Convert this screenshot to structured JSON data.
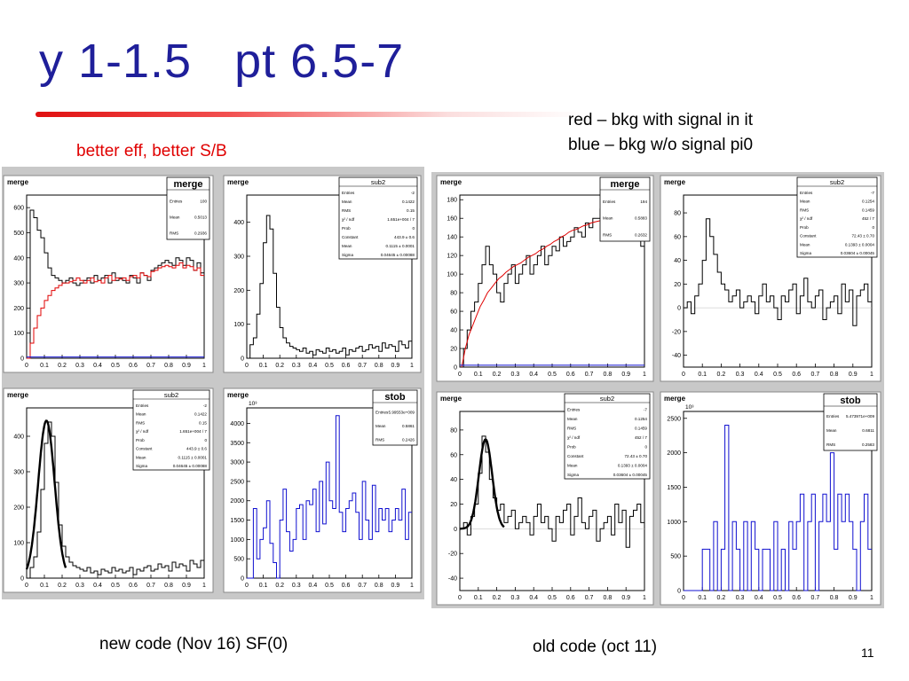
{
  "slide": {
    "title": "y 1-1.5   pt 6.5-7",
    "left_note": "better eff, better S/B",
    "legend_lines": [
      "red – bkg with signal in it",
      "blue – bkg w/o signal pi0"
    ],
    "left_caption": "new code (Nov 16) SF(0)",
    "right_caption": "old code (oct 11)",
    "page_number": "11"
  },
  "colors": {
    "title": "#1f1f9a",
    "red_line": "#e00000",
    "blue_line": "#1010d0",
    "black_line": "#000000",
    "panel_bg": "#c8c8c8",
    "frame_bg": "#ffffff"
  },
  "chart_data": [
    {
      "id": "new-merge",
      "type": "line",
      "title": "merge",
      "tag": "merge",
      "xlim": [
        0,
        1
      ],
      "ylim": [
        0,
        650
      ],
      "xticks": [
        "0",
        "0.1",
        "0.2",
        "0.3",
        "0.4",
        "0.5",
        "0.6",
        "0.7",
        "0.8",
        "0.9",
        "1"
      ],
      "yticks": [
        0,
        100,
        200,
        300,
        400,
        500,
        600
      ],
      "stats_title": "merge",
      "stats": [
        [
          "Entries",
          "100"
        ],
        [
          "Mean",
          "0.5013"
        ],
        [
          "RMS",
          "0.2936"
        ]
      ],
      "series": [
        {
          "color": "black",
          "step": true,
          "values": [
            0,
            590,
            560,
            510,
            480,
            420,
            360,
            330,
            320,
            310,
            300,
            310,
            320,
            300,
            290,
            300,
            310,
            320,
            300,
            330,
            310,
            320,
            330,
            300,
            340,
            310,
            320,
            310,
            300,
            330,
            320,
            300,
            340,
            330,
            310,
            350,
            360,
            370,
            380,
            390,
            380,
            370,
            400,
            390,
            370,
            400,
            390,
            350,
            380,
            340
          ]
        },
        {
          "color": "red",
          "step": true,
          "values": [
            0,
            60,
            120,
            170,
            200,
            230,
            250,
            270,
            280,
            290,
            300,
            300,
            305,
            310,
            320,
            310,
            300,
            310,
            320,
            305,
            310,
            300,
            320,
            330,
            310,
            320,
            315,
            320,
            310,
            325,
            330,
            320,
            340,
            330,
            325,
            345,
            350,
            360,
            365,
            370,
            365,
            360,
            370,
            380,
            360,
            370,
            365,
            350,
            360,
            330
          ]
        },
        {
          "color": "blue",
          "step": true,
          "values": [
            5,
            5,
            5,
            5,
            5,
            5,
            5,
            5,
            5,
            5,
            5,
            5,
            5,
            5,
            5,
            5,
            5,
            5,
            5,
            5,
            5,
            5,
            5,
            5,
            5,
            5,
            5,
            5,
            5,
            5,
            5,
            5,
            5,
            5,
            5,
            5,
            5,
            5,
            5,
            5,
            5,
            5,
            5,
            5,
            5,
            5,
            5,
            5,
            5,
            5
          ]
        }
      ]
    },
    {
      "id": "new-sub2",
      "type": "line",
      "title": "merge",
      "tag": "",
      "xlim": [
        0,
        1
      ],
      "ylim": [
        0,
        480
      ],
      "xticks": [
        "0",
        "0.1",
        "0.2",
        "0.3",
        "0.4",
        "0.5",
        "0.6",
        "0.7",
        "0.8",
        "0.9",
        "1"
      ],
      "yticks": [
        0,
        100,
        200,
        300,
        400
      ],
      "stats_title": "sub2",
      "stats": [
        [
          "Entries",
          "-2"
        ],
        [
          "Mean",
          "0.1422"
        ],
        [
          "RMS",
          "0.15"
        ],
        [
          "χ² / ndf",
          "1.651e+004 / 7"
        ],
        [
          "Prob",
          "0"
        ],
        [
          "Constant",
          "443.9  ±  0.6"
        ],
        [
          "Mean",
          "0.1115  ±  0.0001"
        ],
        [
          "Sigma",
          "0.04645  ±  0.00088"
        ]
      ],
      "series": [
        {
          "color": "black",
          "step": true,
          "values": [
            0,
            40,
            60,
            130,
            220,
            340,
            420,
            380,
            250,
            150,
            90,
            60,
            45,
            35,
            30,
            25,
            20,
            30,
            15,
            20,
            10,
            25,
            20,
            15,
            30,
            20,
            25,
            15,
            20,
            30,
            10,
            25,
            20,
            30,
            35,
            20,
            25,
            40,
            30,
            35,
            20,
            45,
            30,
            40,
            35,
            20,
            50,
            40,
            30,
            50
          ]
        }
      ]
    },
    {
      "id": "new-sub2-fit",
      "type": "line",
      "title": "merge",
      "tag": "",
      "xlim": [
        0,
        1
      ],
      "ylim": [
        0,
        480
      ],
      "xticks": [
        "0",
        "0.1",
        "0.2",
        "0.3",
        "0.4",
        "0.5",
        "0.6",
        "0.7",
        "0.8",
        "0.9",
        "1"
      ],
      "yticks": [
        0,
        100,
        200,
        300,
        400
      ],
      "stats_title": "sub2",
      "stats": [
        [
          "Entries",
          "-2"
        ],
        [
          "Mean",
          "0.1422"
        ],
        [
          "RMS",
          "0.15"
        ],
        [
          "χ² / ndf",
          "1.651e+004 / 7"
        ],
        [
          "Prob",
          "0"
        ],
        [
          "Constant",
          "443.9  ±  0.6"
        ],
        [
          "Mean",
          "0.1115  ±  0.0001"
        ],
        [
          "Sigma",
          "0.04645  ±  0.00088"
        ]
      ],
      "series": [
        {
          "color": "black",
          "step": true,
          "values": [
            0,
            30,
            60,
            130,
            250,
            380,
            440,
            400,
            270,
            150,
            90,
            60,
            45,
            35,
            30,
            25,
            20,
            30,
            15,
            20,
            10,
            25,
            20,
            15,
            30,
            20,
            25,
            15,
            20,
            30,
            10,
            25,
            20,
            30,
            35,
            20,
            25,
            40,
            30,
            35,
            20,
            45,
            30,
            40,
            35,
            20,
            50,
            40,
            30,
            50
          ]
        },
        {
          "color": "black",
          "step": false,
          "bold": true,
          "fit": {
            "const": 443.9,
            "mean": 0.1115,
            "sigma": 0.04645,
            "from": 0.0,
            "to": 0.22
          }
        }
      ]
    },
    {
      "id": "new-stob",
      "type": "line",
      "title": "merge",
      "tag": "",
      "xlim": [
        0,
        1
      ],
      "ylim": [
        0,
        4400
      ],
      "exponent": "10³",
      "xticks": [
        "0",
        "0.1",
        "0.2",
        "0.3",
        "0.4",
        "0.5",
        "0.6",
        "0.7",
        "0.8",
        "0.9",
        "1"
      ],
      "yticks": [
        0,
        500,
        1000,
        1500,
        2000,
        2500,
        3000,
        3500,
        4000
      ],
      "stats_title": "stob",
      "stats": [
        [
          "Entries",
          "5.99553e+009"
        ],
        [
          "Mean",
          "0.5861"
        ],
        [
          "RMS",
          "0.2426"
        ]
      ],
      "series": [
        {
          "color": "blue",
          "step": true,
          "values": [
            0,
            0,
            1800,
            500,
            1000,
            1300,
            2000,
            900,
            400,
            0,
            1500,
            2300,
            1200,
            700,
            1000,
            1800,
            1900,
            1000,
            2000,
            1900,
            2300,
            1200,
            2500,
            1400,
            3000,
            2000,
            1800,
            4200,
            1700,
            1200,
            1800,
            2000,
            2200,
            1700,
            1000,
            2500,
            1500,
            1000,
            2400,
            1200,
            1800,
            1500,
            1800,
            1200,
            1500,
            1800,
            1500,
            2300,
            1000,
            1700
          ]
        }
      ]
    },
    {
      "id": "old-merge",
      "type": "line",
      "title": "merge",
      "tag": "merge",
      "xlim": [
        0,
        1
      ],
      "ylim": [
        0,
        185
      ],
      "xticks": [
        "0",
        "0.1",
        "0.2",
        "0.3",
        "0.4",
        "0.5",
        "0.6",
        "0.7",
        "0.8",
        "0.9",
        "1"
      ],
      "yticks": [
        0,
        20,
        40,
        60,
        80,
        100,
        120,
        140,
        160,
        180
      ],
      "stats_title": "merge",
      "stats": [
        [
          "Entries",
          "194"
        ],
        [
          "Mean",
          "0.5883"
        ],
        [
          "RMS",
          "0.2632"
        ]
      ],
      "series": [
        {
          "color": "black",
          "step": true,
          "values": [
            0,
            20,
            40,
            60,
            70,
            90,
            110,
            130,
            110,
            100,
            80,
            70,
            90,
            100,
            110,
            90,
            100,
            110,
            120,
            100,
            110,
            120,
            130,
            110,
            120,
            130,
            125,
            140,
            130,
            135,
            140,
            150,
            145,
            140,
            155,
            150,
            160,
            160,
            170,
            160,
            165,
            170,
            175,
            160,
            170,
            165,
            170,
            160,
            150,
            130
          ]
        },
        {
          "color": "red",
          "step": false,
          "values": [
            0,
            20,
            35,
            45,
            55,
            65,
            72,
            80,
            85,
            90,
            95,
            98,
            102,
            105,
            108,
            110,
            112,
            115,
            118,
            120,
            122,
            125,
            127,
            130,
            132,
            135,
            137,
            140,
            142,
            145,
            147,
            148,
            150,
            152,
            153,
            155,
            156,
            157,
            158,
            160,
            159,
            158,
            160,
            162,
            160,
            158,
            157,
            155,
            150,
            140
          ]
        },
        {
          "color": "blue",
          "step": true,
          "values": [
            2,
            2,
            2,
            2,
            2,
            2,
            2,
            2,
            2,
            2,
            2,
            2,
            2,
            2,
            2,
            2,
            2,
            2,
            2,
            2,
            2,
            2,
            2,
            2,
            2,
            2,
            2,
            2,
            2,
            2,
            2,
            2,
            2,
            2,
            2,
            2,
            2,
            2,
            2,
            2,
            2,
            2,
            2,
            2,
            2,
            2,
            2,
            2,
            2,
            2
          ]
        }
      ]
    },
    {
      "id": "old-sub2",
      "type": "line",
      "title": "merge",
      "tag": "",
      "xlim": [
        0,
        1
      ],
      "ylim": [
        -50,
        95
      ],
      "xticks": [
        "0",
        "0.1",
        "0.2",
        "0.3",
        "0.4",
        "0.5",
        "0.6",
        "0.7",
        "0.8",
        "0.9",
        "1"
      ],
      "yticks": [
        -40,
        -20,
        0,
        20,
        40,
        60,
        80
      ],
      "stats_title": "sub2",
      "stats": [
        [
          "Entries",
          "-7"
        ],
        [
          "Mean",
          "0.1254"
        ],
        [
          "RMS",
          "0.1459"
        ],
        [
          "χ² / ndf",
          "452 / 7"
        ],
        [
          "Prob",
          "0"
        ],
        [
          "Constant",
          "72.43  ±  0.70"
        ],
        [
          "Mean",
          "0.1393  ±  0.0004"
        ],
        [
          "Sigma",
          "0.03604  ±  0.00045"
        ]
      ],
      "series": [
        {
          "color": "black",
          "step": true,
          "values": [
            0,
            5,
            -5,
            10,
            20,
            40,
            75,
            60,
            45,
            30,
            20,
            15,
            5,
            10,
            15,
            0,
            5,
            10,
            5,
            -5,
            10,
            20,
            5,
            10,
            0,
            -10,
            10,
            5,
            15,
            20,
            -5,
            10,
            25,
            5,
            0,
            10,
            15,
            -10,
            0,
            5,
            10,
            -5,
            20,
            5,
            15,
            -15,
            10,
            15,
            20,
            5
          ]
        }
      ]
    },
    {
      "id": "old-sub2-fit",
      "type": "line",
      "title": "merge",
      "tag": "",
      "xlim": [
        0,
        1
      ],
      "ylim": [
        -50,
        95
      ],
      "xticks": [
        "0",
        "0.1",
        "0.2",
        "0.3",
        "0.4",
        "0.5",
        "0.6",
        "0.7",
        "0.8",
        "0.9",
        "1"
      ],
      "yticks": [
        -40,
        -20,
        0,
        20,
        40,
        60,
        80
      ],
      "stats_title": "sub2",
      "stats": [
        [
          "Entries",
          "-7"
        ],
        [
          "Mean",
          "0.1254"
        ],
        [
          "RMS",
          "0.1459"
        ],
        [
          "χ² / ndf",
          "452 / 7"
        ],
        [
          "Prob",
          "0"
        ],
        [
          "Constant",
          "72.43  ±  0.70"
        ],
        [
          "Mean",
          "0.1393  ±  0.0004"
        ],
        [
          "Sigma",
          "0.03604  ±  0.00045"
        ]
      ],
      "series": [
        {
          "color": "black",
          "step": true,
          "values": [
            0,
            5,
            -5,
            10,
            20,
            45,
            75,
            62,
            40,
            25,
            15,
            20,
            5,
            10,
            15,
            0,
            5,
            10,
            5,
            -5,
            10,
            20,
            5,
            10,
            0,
            -10,
            10,
            5,
            15,
            20,
            -5,
            10,
            25,
            5,
            0,
            10,
            15,
            -10,
            0,
            5,
            10,
            -5,
            20,
            5,
            15,
            -15,
            10,
            15,
            20,
            5
          ]
        },
        {
          "color": "black",
          "step": false,
          "bold": true,
          "fit": {
            "const": 72.43,
            "mean": 0.1393,
            "sigma": 0.03604,
            "from": 0.0,
            "to": 0.24
          }
        }
      ]
    },
    {
      "id": "old-stob",
      "type": "line",
      "title": "merge",
      "tag": "",
      "xlim": [
        0,
        1
      ],
      "ylim": [
        0,
        2600
      ],
      "exponent": "10³",
      "xticks": [
        "0",
        "0.1",
        "0.2",
        "0.3",
        "0.4",
        "0.5",
        "0.6",
        "0.7",
        "0.8",
        "0.9",
        "1"
      ],
      "yticks": [
        0,
        500,
        1000,
        1500,
        2000,
        2500
      ],
      "stats_title": "stob",
      "stats": [
        [
          "Entries",
          "5.473971e+009"
        ],
        [
          "Mean",
          "0.6811"
        ],
        [
          "RMS",
          "0.2583"
        ]
      ],
      "series": [
        {
          "color": "blue",
          "step": true,
          "values": [
            0,
            0,
            0,
            0,
            0,
            600,
            600,
            0,
            1000,
            0,
            600,
            2400,
            0,
            1000,
            600,
            0,
            1000,
            0,
            1000,
            600,
            0,
            600,
            600,
            0,
            1000,
            0,
            600,
            0,
            1000,
            600,
            1000,
            1400,
            0,
            1000,
            1400,
            0,
            1000,
            1400,
            1000,
            2000,
            600,
            1400,
            1000,
            1400,
            1000,
            600,
            0,
            1000,
            1400,
            600
          ]
        }
      ]
    }
  ]
}
